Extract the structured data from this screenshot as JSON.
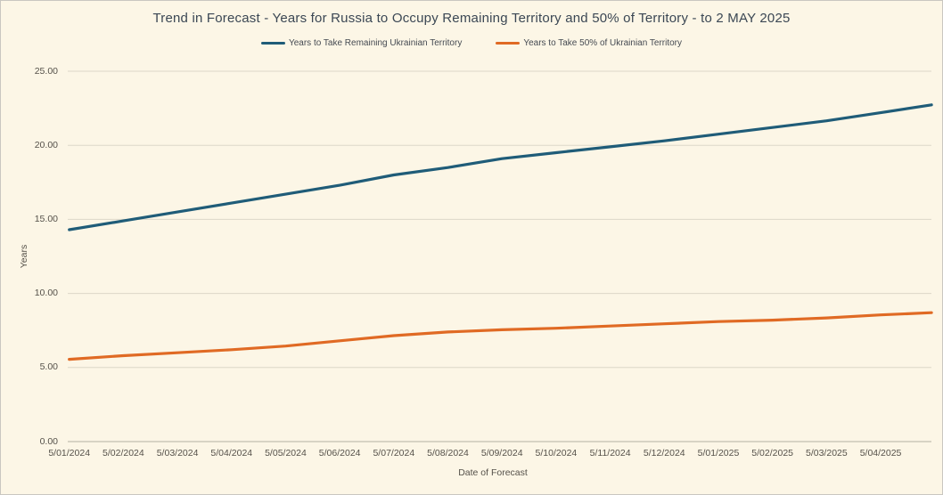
{
  "colors": {
    "background": "#FCF6E6",
    "frame_border": "#C9C7C0",
    "title_text": "#3B4754",
    "legend_text": "#454A52",
    "tick_text": "#55514A",
    "axis_title_text": "#55514A",
    "gridline": "#DCD7C8",
    "axis_line": "#B5B0A2",
    "series_blue": "#1F5C78",
    "series_orange": "#E06A24"
  },
  "chart_data": {
    "type": "line",
    "title": "Trend in Forecast - Years for Russia to Occupy Remaining Territory and 50% of Territory - to 2 MAY 2025",
    "xlabel": "Date of Forecast",
    "ylabel": "Years",
    "ylim": [
      0,
      25
    ],
    "ytick_step": 5,
    "ytick_labels": [
      "25.00",
      "20.00",
      "15.00",
      "10.00",
      "5.00",
      "0.00"
    ],
    "grid": true,
    "legend_position": "top-center",
    "categories": [
      "5/01/2024",
      "5/02/2024",
      "5/03/2024",
      "5/04/2024",
      "5/05/2024",
      "5/06/2024",
      "5/07/2024",
      "5/08/2024",
      "5/09/2024",
      "5/10/2024",
      "5/11/2024",
      "5/12/2024",
      "5/01/2025",
      "5/02/2025",
      "5/03/2025",
      "5/04/2025"
    ],
    "x_end_note": "lines extend past last tick to 2 MAY 2025",
    "series": [
      {
        "name": "Years to Take Remaining Ukrainian Territory",
        "color": "#1F5C78",
        "x": [
          0,
          1,
          2,
          3,
          4,
          5,
          6,
          7,
          8,
          9,
          10,
          11,
          12,
          13,
          14,
          15,
          15.94
        ],
        "values": [
          14.3,
          14.9,
          15.5,
          16.1,
          16.7,
          17.3,
          18.0,
          18.5,
          19.1,
          19.5,
          19.9,
          20.3,
          20.75,
          21.2,
          21.65,
          22.2,
          22.73
        ]
      },
      {
        "name": "Years to Take 50% of Ukrainian Territory",
        "color": "#E06A24",
        "x": [
          0,
          1,
          2,
          3,
          4,
          5,
          6,
          7,
          8,
          9,
          10,
          11,
          12,
          13,
          14,
          15,
          15.94
        ],
        "values": [
          5.55,
          5.8,
          6.0,
          6.2,
          6.45,
          6.8,
          7.15,
          7.4,
          7.55,
          7.65,
          7.8,
          7.95,
          8.1,
          8.2,
          8.35,
          8.55,
          8.7
        ]
      }
    ]
  }
}
